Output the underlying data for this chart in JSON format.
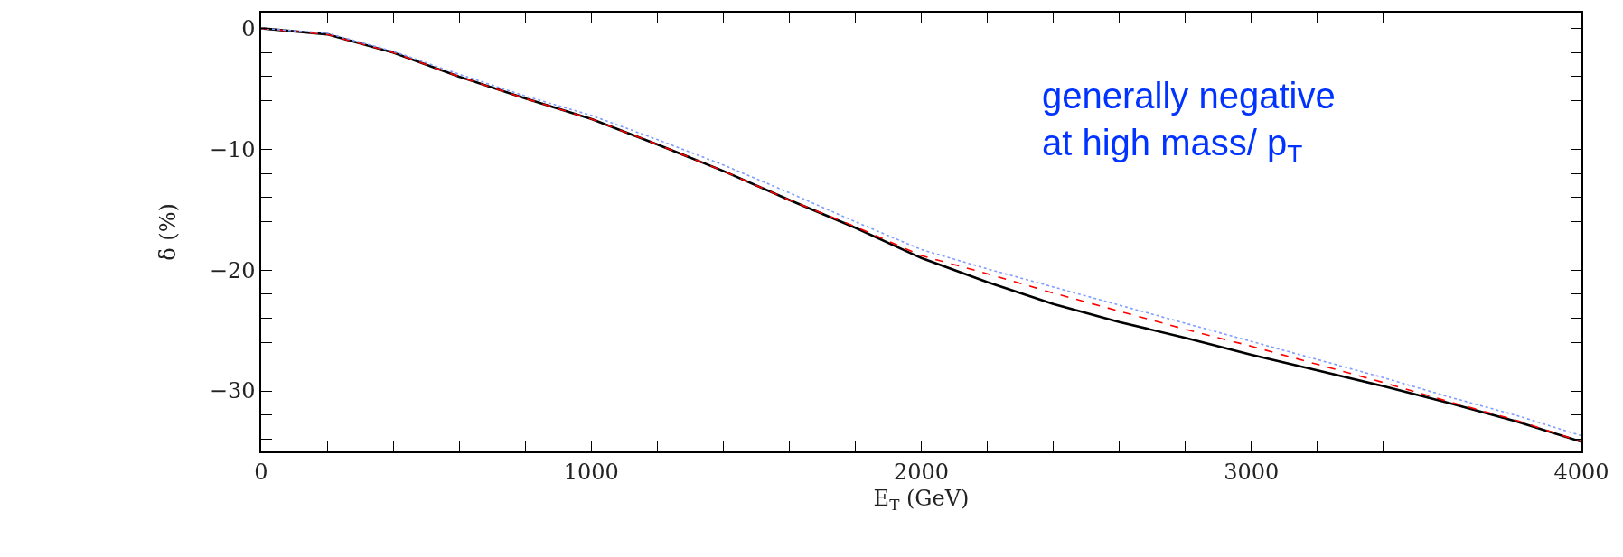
{
  "chart_data": {
    "type": "line",
    "xlabel": "E$_{T}$ (GeV)",
    "ylabel": "δ (%)",
    "x": [
      0,
      200,
      400,
      600,
      800,
      1000,
      1200,
      1400,
      1600,
      1800,
      2000,
      2200,
      2400,
      2600,
      2800,
      3000,
      3200,
      3400,
      3600,
      3800,
      4000
    ],
    "series": [
      {
        "color": "#000000",
        "line_style": "solid",
        "values": [
          0,
          -0.5,
          -2,
          -4,
          -5.8,
          -7.5,
          -9.6,
          -11.8,
          -14.2,
          -16.5,
          -19,
          -21,
          -22.8,
          -24.3,
          -25.6,
          -27,
          -28.3,
          -29.6,
          -31,
          -32.5,
          -34.2
        ]
      },
      {
        "color": "#ff0000",
        "line_style": "dashed",
        "values": [
          0,
          -0.5,
          -2,
          -4,
          -5.8,
          -7.5,
          -9.6,
          -11.8,
          -14.2,
          -16.4,
          -18.8,
          -20.3,
          -21.9,
          -23.4,
          -24.9,
          -26.3,
          -27.8,
          -29.3,
          -30.9,
          -32.4,
          -34.2
        ]
      },
      {
        "color": "#7f9cff",
        "line_style": "dotted",
        "values": [
          0,
          -0.4,
          -1.9,
          -3.8,
          -5.6,
          -7.2,
          -9.2,
          -11.3,
          -13.6,
          -16,
          -18.3,
          -19.9,
          -21.4,
          -22.9,
          -24.4,
          -25.9,
          -27.4,
          -28.9,
          -30.5,
          -32,
          -33.7
        ]
      }
    ],
    "xlim": [
      0,
      4000
    ],
    "ylim": [
      -35,
      1.3
    ],
    "xticks": [
      0,
      {
        "value": 200,
        "label": null
      },
      {
        "value": 400,
        "label": null
      },
      {
        "value": 600,
        "label": null
      },
      {
        "value": 800,
        "label": null
      },
      1000,
      {
        "value": 1200,
        "label": null
      },
      {
        "value": 1400,
        "label": null
      },
      {
        "value": 1600,
        "label": null
      },
      {
        "value": 1800,
        "label": null
      },
      2000,
      {
        "value": 2200,
        "label": null
      },
      {
        "value": 2400,
        "label": null
      },
      {
        "value": 2600,
        "label": null
      },
      {
        "value": 2800,
        "label": null
      },
      3000,
      {
        "value": 3200,
        "label": null
      },
      {
        "value": 3400,
        "label": null
      },
      {
        "value": 3600,
        "label": null
      },
      {
        "value": 3800,
        "label": null
      },
      4000
    ],
    "yticks": [
      0,
      {
        "value": -2,
        "label": null
      },
      {
        "value": -4,
        "label": null
      },
      {
        "value": -6,
        "label": null
      },
      {
        "value": -8,
        "label": null
      },
      {
        "value": -10,
        "label": "−10"
      },
      {
        "value": -12,
        "label": null
      },
      {
        "value": -14,
        "label": null
      },
      {
        "value": -16,
        "label": null
      },
      {
        "value": -18,
        "label": null
      },
      {
        "value": -20,
        "label": "−20"
      },
      {
        "value": -22,
        "label": null
      },
      {
        "value": -24,
        "label": null
      },
      {
        "value": -26,
        "label": null
      },
      {
        "value": -28,
        "label": null
      },
      {
        "value": -30,
        "label": "−30"
      },
      {
        "value": -32,
        "label": null
      },
      {
        "value": -34,
        "label": null
      }
    ],
    "annotations": [
      "generally negative\nat high mass/ p$_{T}$"
    ],
    "legend": false
  }
}
